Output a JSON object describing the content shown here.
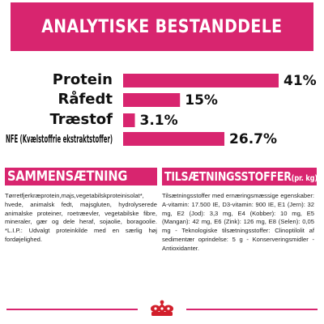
{
  "header": {
    "title": "ANALYTISKE BESTANDDELE"
  },
  "chart_data": {
    "type": "bar",
    "orientation": "horizontal",
    "title": "ANALYTISKE BESTANDDELE",
    "categories": [
      "Protein",
      "Råfedt",
      "Træstof",
      "NFE (Kvælstoffrie ekstraktstoffer)"
    ],
    "values": [
      41,
      15,
      3.1,
      26.7
    ],
    "value_labels": [
      "41%",
      "15%",
      "3.1%",
      "26.7%"
    ],
    "unit": "%",
    "bar_color": "#d8256f",
    "grid": false,
    "legend": "none"
  },
  "composition": {
    "heading": "SAMMENSÆTNING",
    "text": "Tørretfjerkræprotein,majs,vegetabilskproteinisolat*, hvede, animalsk fedt, majsgluten, hydrolyserede animalske proteiner, roetræevler, vegetabilske fibre, mineraler, gær og dele heraf, sojaolie, boragoolie. *L.I.P.: Udvalgt proteinkilde med en særlig høj fordøjelighed."
  },
  "additives": {
    "heading": "TILSÆTNINGSSTOFFER",
    "heading_suffix": "(pr. kg)",
    "text": "Tilsætningsstoffer med ernæringsmæssige egenskaber: A-vitamin: 17.500 IE, D3-vitamin: 900 IE, E1 (Jern): 32 mg, E2 (Jod): 3,3 mg, E4 (Kobber): 10 mg, E5 (Mangan): 42 mg, E6 (Zink): 126 mg, E8 (Selen): 0,05 mg - Teknologiske tilsætningsstoffer: Clinoptilolit af sedimentær oprindelse: 5 g - Konserveringsmidler - Antioxidanter."
  },
  "colors": {
    "accent": "#d8256f",
    "logo": "#d21f2b"
  },
  "footer": {
    "logo_icon": "royal-canin-crown-logo"
  }
}
